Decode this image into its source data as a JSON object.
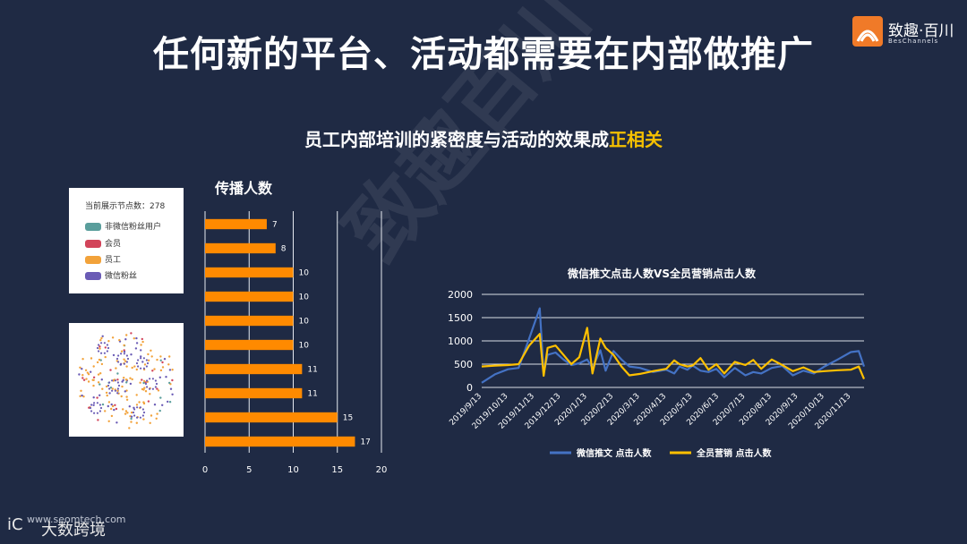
{
  "title": "任何新的平台、活动都需要在内部做推广",
  "logo": {
    "name": "致趣·百川",
    "sub": "BesChannels"
  },
  "subtitle": {
    "prefix": "员工内部培训的紧密度与活动的效果成",
    "highlight": "正相关"
  },
  "legend_card": {
    "count_label": "当前展示节点数：278",
    "items": [
      {
        "label": "非微信粉丝用户",
        "color": "#5a9e9c"
      },
      {
        "label": "会员",
        "color": "#d2445a"
      },
      {
        "label": "员工",
        "color": "#f2a23a"
      },
      {
        "label": "微信粉丝",
        "color": "#6a5bb5"
      }
    ]
  },
  "watermark": "致趣百川",
  "footer": {
    "mark": "iC",
    "url": "www.seomtech.com",
    "name": "大数跨境"
  },
  "colors": {
    "orange": "#ff8a00",
    "blue": "#4472c4",
    "yellow": "#ffc000",
    "highlight": "#f5c000"
  },
  "chart_data": [
    {
      "type": "bar",
      "orientation": "horizontal",
      "title": "传播人数",
      "values": [
        7,
        8,
        10,
        10,
        10,
        10,
        11,
        11,
        15,
        17
      ],
      "xlim": [
        0,
        20
      ],
      "xticks": [
        0,
        5,
        10,
        15,
        20
      ],
      "grid": true
    },
    {
      "type": "line",
      "title": "微信推文点击人数VS全员营销点击人数",
      "categories": [
        "2019/9/13",
        "2019/10/13",
        "2019/11/13",
        "2019/12/13",
        "2020/1/13",
        "2020/2/13",
        "2020/3/13",
        "2020/4/13",
        "2020/5/13",
        "2020/6/13",
        "2020/7/13",
        "2020/8/13",
        "2020/9/13",
        "2020/10/13",
        "2020/11/13"
      ],
      "ylim": [
        0,
        2000
      ],
      "yticks": [
        0,
        500,
        1000,
        1500,
        2000
      ],
      "legend_position": "bottom",
      "series": [
        {
          "name": "微信推文  点击人数",
          "color": "#4472c4",
          "x": [
            0,
            0.5,
            1,
            1.4,
            1.8,
            2.2,
            2.35,
            2.5,
            2.8,
            3.1,
            3.4,
            3.7,
            4,
            4.2,
            4.5,
            4.7,
            5,
            5.3,
            5.6,
            6,
            6.5,
            7,
            7.3,
            7.5,
            7.8,
            8,
            8.3,
            8.6,
            8.9,
            9.2,
            9.6,
            10,
            10.3,
            10.6,
            11,
            11.4,
            11.8,
            12.2,
            12.6,
            13,
            13.5,
            14,
            14.3,
            14.5
          ],
          "values": [
            100,
            280,
            390,
            420,
            1050,
            1700,
            300,
            700,
            750,
            600,
            480,
            520,
            600,
            420,
            800,
            360,
            780,
            600,
            450,
            420,
            330,
            380,
            300,
            450,
            380,
            470,
            360,
            330,
            400,
            220,
            420,
            260,
            330,
            300,
            420,
            460,
            260,
            360,
            300,
            450,
            600,
            760,
            780,
            450
          ]
        },
        {
          "name": "全员营销  点击人数",
          "color": "#ffc000",
          "x": [
            0,
            0.5,
            1,
            1.4,
            1.8,
            2.2,
            2.35,
            2.5,
            2.8,
            3.1,
            3.4,
            3.7,
            4,
            4.2,
            4.5,
            4.7,
            5,
            5.3,
            5.6,
            6,
            6.5,
            7,
            7.3,
            7.5,
            7.8,
            8,
            8.3,
            8.6,
            8.9,
            9.2,
            9.6,
            10,
            10.3,
            10.6,
            11,
            11.4,
            11.8,
            12.2,
            12.6,
            13,
            13.5,
            14,
            14.3,
            14.5
          ],
          "values": [
            450,
            470,
            480,
            500,
            900,
            1150,
            250,
            850,
            900,
            700,
            500,
            650,
            1280,
            300,
            1050,
            850,
            700,
            450,
            260,
            290,
            350,
            400,
            580,
            500,
            450,
            470,
            630,
            380,
            500,
            300,
            550,
            480,
            590,
            400,
            600,
            480,
            350,
            430,
            330,
            350,
            370,
            380,
            450,
            180
          ]
        }
      ]
    }
  ]
}
